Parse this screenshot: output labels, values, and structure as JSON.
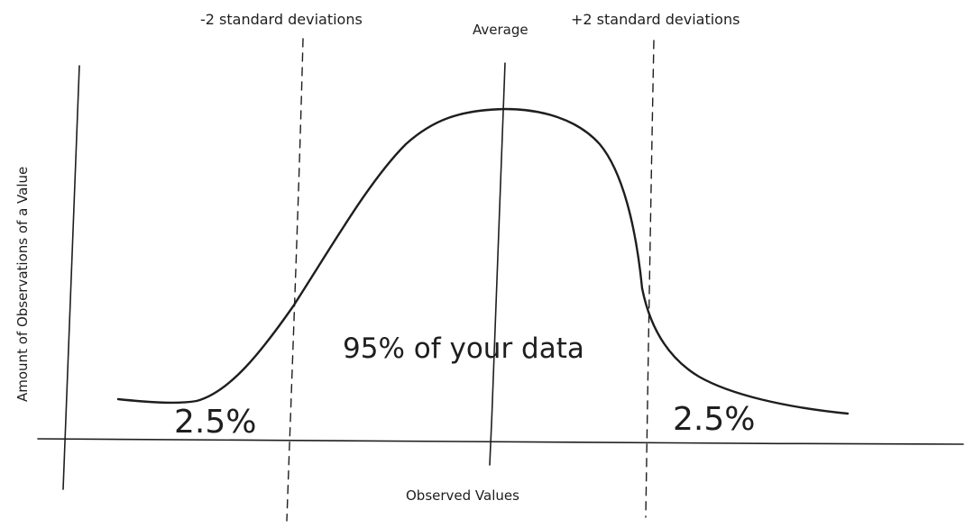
{
  "diagram": {
    "markers": {
      "minus_two_sd": "-2 standard deviations",
      "average": "Average",
      "plus_two_sd": "+2 standard deviations"
    },
    "axes": {
      "x_label": "Observed Values",
      "y_label": "Amount of Observations of a Value"
    },
    "regions": {
      "center": "95% of your data",
      "left_tail": "2.5%",
      "right_tail": "2.5%"
    }
  }
}
